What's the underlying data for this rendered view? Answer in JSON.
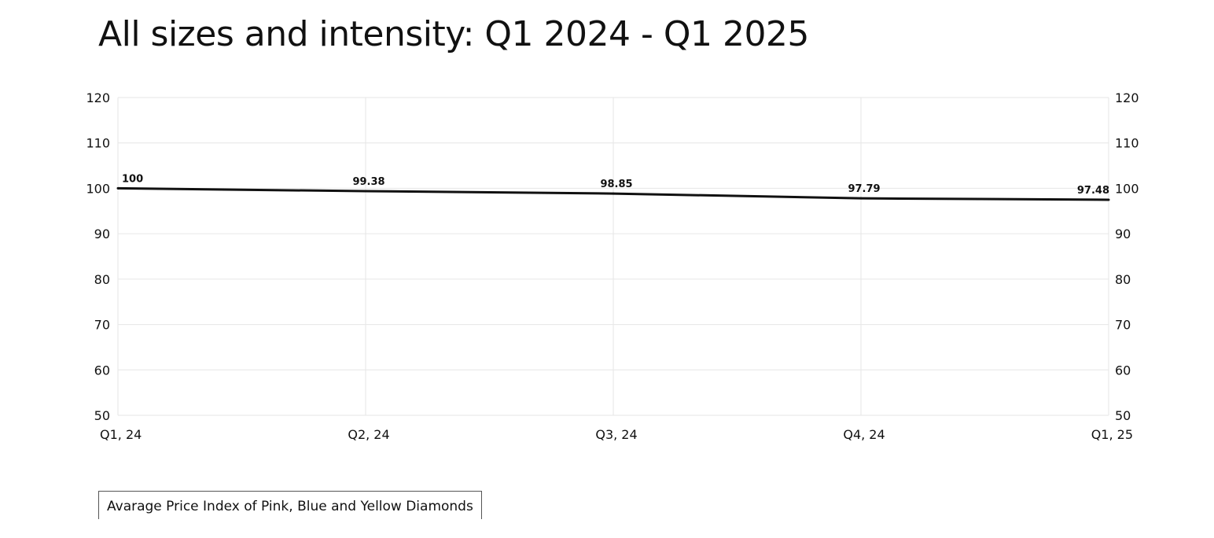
{
  "chart_data": {
    "type": "line",
    "title": "All sizes and intensity: Q1 2024 - Q1 2025",
    "categories": [
      "Q1, 24",
      "Q2, 24",
      "Q3, 24",
      "Q4, 24",
      "Q1, 25"
    ],
    "series": [
      {
        "name": "Avarage Price Index of Pink, Blue and Yellow Diamonds",
        "values": [
          100,
          99.38,
          98.85,
          97.79,
          97.48
        ],
        "labels": [
          "100",
          "99.38",
          "98.85",
          "97.79",
          "97.48"
        ],
        "color": "#111111"
      }
    ],
    "ylim": [
      50,
      120
    ],
    "yticks": [
      "120",
      "110",
      "100",
      "90",
      "80",
      "70",
      "60",
      "50"
    ],
    "ytick_values": [
      120,
      110,
      100,
      90,
      80,
      70,
      60,
      50
    ],
    "y_axes": "both",
    "grid": true,
    "legend": "bottom-left",
    "xlabel": "",
    "ylabel": ""
  }
}
